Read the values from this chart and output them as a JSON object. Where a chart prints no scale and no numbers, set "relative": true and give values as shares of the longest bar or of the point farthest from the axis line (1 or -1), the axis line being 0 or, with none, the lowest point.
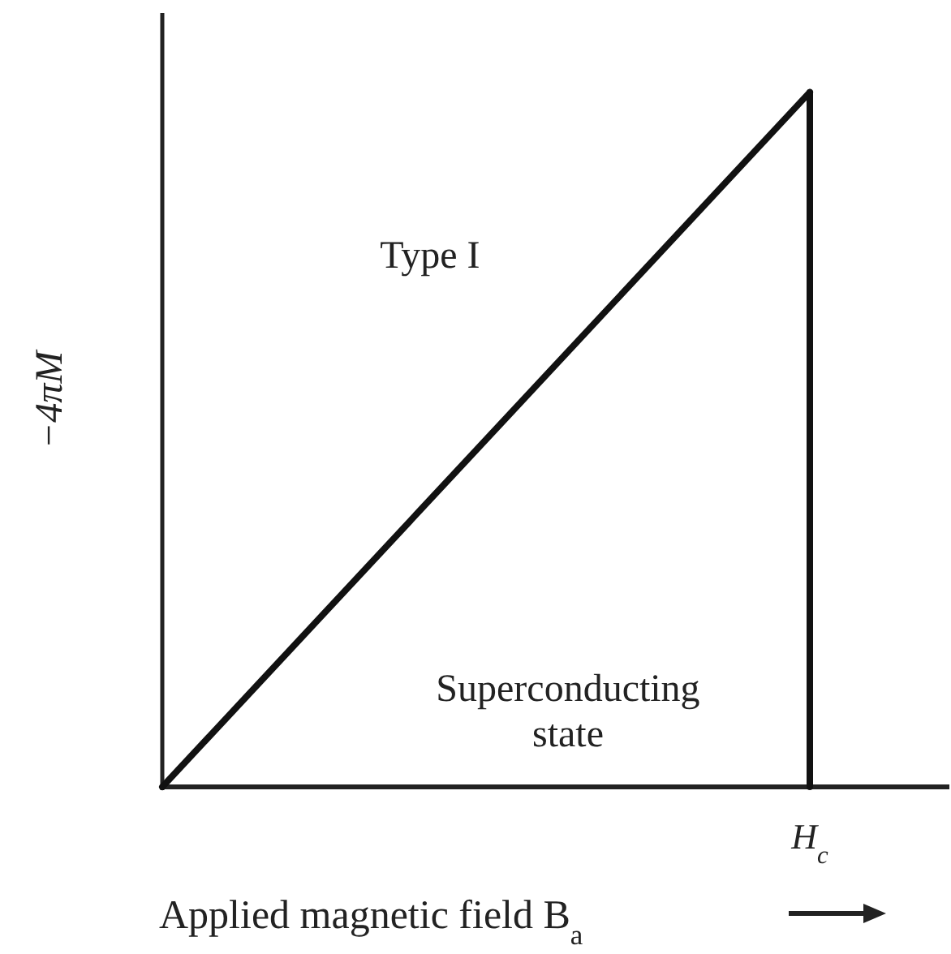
{
  "chart_data": {
    "type": "line",
    "relative": true,
    "categories": [
      null,
      null
    ],
    "series": [
      {
        "color": "#111111",
        "values": [
          0,
          1
        ]
      }
    ],
    "ref_lines": [
      {
        "axis": "x",
        "label": "H$_{c}$",
        "color": "#111111"
      }
    ],
    "xlabel": "Applied magnetic field B$_{a}$",
    "ylabel": "−4πM",
    "annotations": [
      "Type I",
      "Superconducting\nstate"
    ],
    "marker": "none",
    "line_style": "solid"
  }
}
